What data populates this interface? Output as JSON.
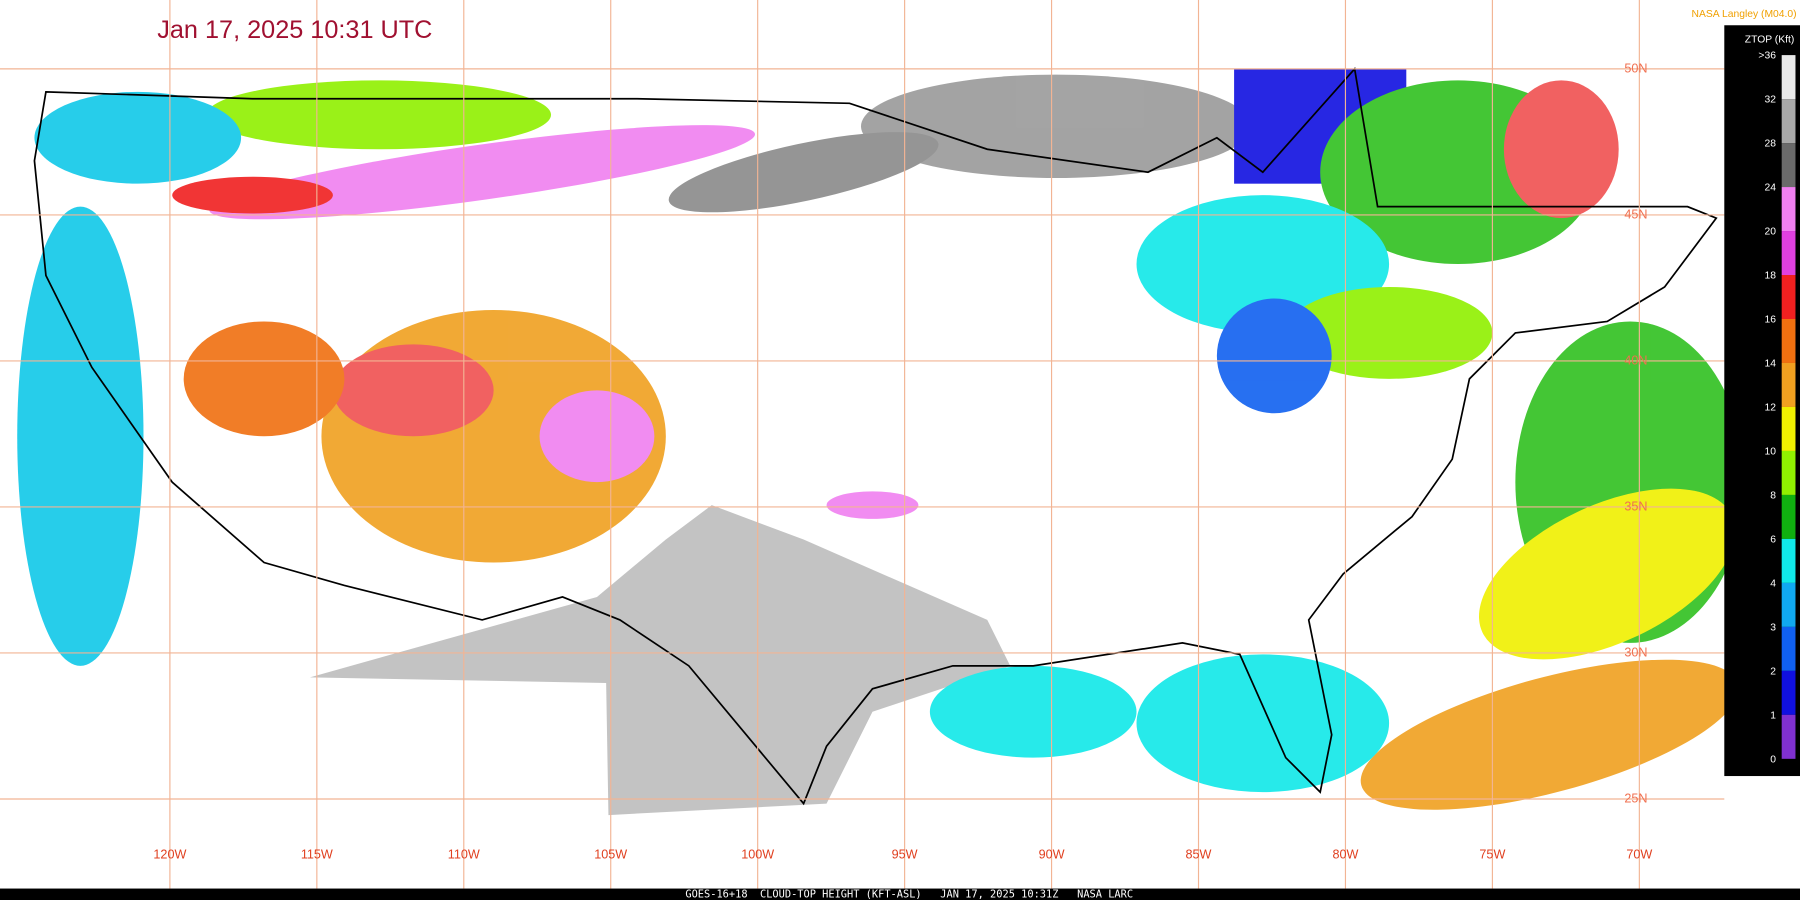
{
  "header": {
    "title": "Jan 17, 2025 10:31 UTC",
    "source": "NASA Langley (M04.0)"
  },
  "legend": {
    "title": "ZTOP (Kft)",
    "ticks": [
      ">36",
      "32",
      "28",
      "24",
      "20",
      "18",
      "16",
      "14",
      "12",
      "10",
      "8",
      "6",
      "4",
      "3",
      "2",
      "1",
      "0"
    ],
    "colors": [
      "#e8e8e8",
      "#a8a8a8",
      "#6a6a6a",
      "#f080f0",
      "#e040e0",
      "#f02020",
      "#f07010",
      "#f0a020",
      "#f0f000",
      "#90f000",
      "#10b010",
      "#10e8e8",
      "#10a8f0",
      "#1060f0",
      "#1010e0",
      "#8030d0"
    ]
  },
  "longitude_labels": [
    "120W",
    "115W",
    "110W",
    "105W",
    "100W",
    "95W",
    "90W",
    "85W",
    "80W",
    "75W",
    "70W"
  ],
  "latitude_labels": [
    "50N",
    "45N",
    "40N",
    "35N",
    "30N",
    "25N"
  ],
  "footer": "GOES-16+18  CLOUD-TOP HEIGHT (KFT-ASL)   JAN 17, 2025 10:31Z   NASA LARC"
}
